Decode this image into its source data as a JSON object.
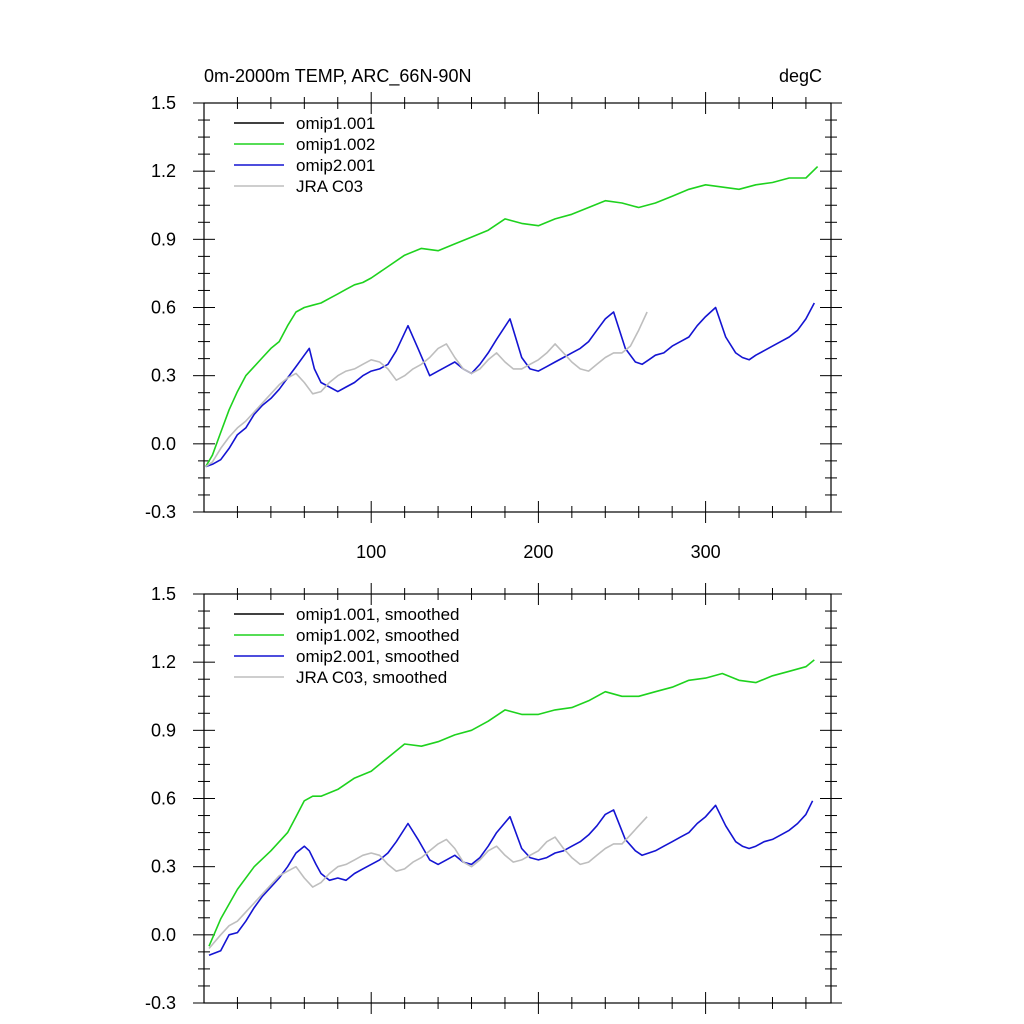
{
  "chart_data": [
    {
      "type": "line",
      "title": "0m-2000m TEMP, ARC_66N-90N",
      "units": "degC",
      "xlim": [
        0,
        375
      ],
      "ylim": [
        -0.3,
        1.5
      ],
      "x_ticks": [
        100,
        200,
        300
      ],
      "y_ticks": [
        "1.5",
        "1.2",
        "0.9",
        "0.6",
        "0.3",
        "0.0",
        "-0.3"
      ],
      "grid": false,
      "legend_position": "top-left",
      "series": [
        {
          "name": "omip1.001",
          "color": "#000000",
          "x": [],
          "y": []
        },
        {
          "name": "omip1.002",
          "color": "#1ed21e",
          "x": [
            1,
            5,
            10,
            15,
            20,
            25,
            30,
            35,
            40,
            45,
            50,
            55,
            60,
            65,
            70,
            75,
            80,
            85,
            90,
            95,
            100,
            110,
            120,
            130,
            140,
            150,
            160,
            170,
            180,
            190,
            200,
            210,
            220,
            230,
            240,
            250,
            260,
            270,
            280,
            290,
            300,
            310,
            320,
            330,
            340,
            350,
            360,
            367
          ],
          "y": [
            -0.1,
            -0.05,
            0.05,
            0.15,
            0.23,
            0.3,
            0.34,
            0.38,
            0.42,
            0.45,
            0.52,
            0.58,
            0.6,
            0.61,
            0.62,
            0.64,
            0.66,
            0.68,
            0.7,
            0.71,
            0.73,
            0.78,
            0.83,
            0.86,
            0.85,
            0.88,
            0.91,
            0.94,
            0.99,
            0.97,
            0.96,
            0.99,
            1.01,
            1.04,
            1.07,
            1.06,
            1.04,
            1.06,
            1.09,
            1.12,
            1.14,
            1.13,
            1.12,
            1.14,
            1.15,
            1.17,
            1.17,
            1.22
          ]
        },
        {
          "name": "omip2.001",
          "color": "#1414d2",
          "x": [
            1,
            5,
            10,
            15,
            20,
            25,
            30,
            35,
            40,
            45,
            50,
            55,
            60,
            63,
            66,
            70,
            75,
            80,
            85,
            90,
            95,
            100,
            105,
            110,
            115,
            122,
            128,
            135,
            140,
            145,
            150,
            155,
            160,
            165,
            170,
            175,
            183,
            190,
            195,
            200,
            205,
            210,
            215,
            220,
            225,
            230,
            235,
            240,
            245,
            252,
            258,
            262,
            266,
            270,
            275,
            280,
            285,
            290,
            295,
            300,
            306,
            312,
            318,
            322,
            326,
            330,
            335,
            340,
            345,
            350,
            355,
            360,
            365
          ],
          "y": [
            -0.1,
            -0.09,
            -0.07,
            -0.02,
            0.04,
            0.07,
            0.13,
            0.17,
            0.2,
            0.24,
            0.29,
            0.34,
            0.39,
            0.42,
            0.33,
            0.27,
            0.25,
            0.23,
            0.25,
            0.27,
            0.3,
            0.32,
            0.33,
            0.35,
            0.41,
            0.52,
            0.42,
            0.3,
            0.32,
            0.34,
            0.36,
            0.33,
            0.31,
            0.35,
            0.4,
            0.46,
            0.55,
            0.38,
            0.33,
            0.32,
            0.34,
            0.36,
            0.38,
            0.4,
            0.42,
            0.45,
            0.5,
            0.55,
            0.58,
            0.42,
            0.36,
            0.35,
            0.37,
            0.39,
            0.4,
            0.43,
            0.45,
            0.47,
            0.52,
            0.56,
            0.6,
            0.47,
            0.4,
            0.38,
            0.37,
            0.39,
            0.41,
            0.43,
            0.45,
            0.47,
            0.5,
            0.55,
            0.62
          ]
        },
        {
          "name": "JRA C03",
          "color": "#bebebe",
          "x": [
            1,
            5,
            10,
            15,
            20,
            25,
            30,
            35,
            40,
            45,
            50,
            55,
            60,
            65,
            70,
            75,
            80,
            85,
            90,
            95,
            100,
            105,
            110,
            115,
            120,
            125,
            130,
            135,
            140,
            145,
            150,
            155,
            160,
            165,
            170,
            175,
            180,
            185,
            190,
            195,
            200,
            205,
            210,
            215,
            220,
            225,
            230,
            235,
            240,
            245,
            250,
            255,
            260,
            265
          ],
          "y": [
            -0.1,
            -0.08,
            -0.02,
            0.03,
            0.07,
            0.1,
            0.14,
            0.18,
            0.22,
            0.26,
            0.29,
            0.31,
            0.27,
            0.22,
            0.23,
            0.27,
            0.3,
            0.32,
            0.33,
            0.35,
            0.37,
            0.36,
            0.33,
            0.28,
            0.3,
            0.33,
            0.35,
            0.38,
            0.42,
            0.44,
            0.38,
            0.33,
            0.31,
            0.33,
            0.37,
            0.4,
            0.36,
            0.33,
            0.33,
            0.35,
            0.37,
            0.4,
            0.44,
            0.4,
            0.36,
            0.33,
            0.32,
            0.35,
            0.38,
            0.4,
            0.4,
            0.43,
            0.5,
            0.58
          ]
        }
      ]
    },
    {
      "type": "line",
      "xlim": [
        0,
        375
      ],
      "ylim": [
        -0.3,
        1.5
      ],
      "y_ticks": [
        "1.5",
        "1.2",
        "0.9",
        "0.6",
        "0.3",
        "0.0",
        "-0.3"
      ],
      "grid": false,
      "legend_position": "top-left",
      "series": [
        {
          "name": "omip1.001, smoothed",
          "color": "#000000",
          "x": [],
          "y": []
        },
        {
          "name": "omip1.002, smoothed",
          "color": "#1ed21e",
          "x": [
            3,
            10,
            20,
            30,
            40,
            50,
            55,
            60,
            65,
            70,
            80,
            90,
            100,
            110,
            120,
            130,
            140,
            150,
            160,
            170,
            180,
            190,
            200,
            210,
            220,
            230,
            240,
            250,
            260,
            270,
            280,
            290,
            300,
            310,
            320,
            330,
            340,
            350,
            360,
            365
          ],
          "y": [
            -0.05,
            0.07,
            0.2,
            0.3,
            0.37,
            0.45,
            0.52,
            0.59,
            0.61,
            0.61,
            0.64,
            0.69,
            0.72,
            0.78,
            0.84,
            0.83,
            0.85,
            0.88,
            0.9,
            0.94,
            0.99,
            0.97,
            0.97,
            0.99,
            1.0,
            1.03,
            1.07,
            1.05,
            1.05,
            1.07,
            1.09,
            1.12,
            1.13,
            1.15,
            1.12,
            1.11,
            1.14,
            1.16,
            1.18,
            1.21
          ]
        },
        {
          "name": "omip2.001, smoothed",
          "color": "#1414d2",
          "x": [
            3,
            10,
            15,
            20,
            25,
            30,
            35,
            40,
            45,
            50,
            55,
            60,
            63,
            67,
            70,
            75,
            80,
            85,
            90,
            95,
            100,
            105,
            110,
            115,
            122,
            128,
            135,
            140,
            145,
            150,
            155,
            160,
            165,
            170,
            175,
            183,
            190,
            195,
            200,
            205,
            210,
            215,
            220,
            225,
            230,
            235,
            240,
            245,
            252,
            258,
            262,
            266,
            270,
            275,
            280,
            285,
            290,
            295,
            300,
            306,
            312,
            318,
            322,
            326,
            330,
            335,
            340,
            345,
            350,
            355,
            360,
            364
          ],
          "y": [
            -0.09,
            -0.07,
            0.0,
            0.01,
            0.06,
            0.12,
            0.17,
            0.21,
            0.25,
            0.3,
            0.36,
            0.39,
            0.37,
            0.31,
            0.27,
            0.24,
            0.25,
            0.24,
            0.27,
            0.29,
            0.31,
            0.33,
            0.36,
            0.41,
            0.49,
            0.42,
            0.33,
            0.31,
            0.33,
            0.35,
            0.32,
            0.31,
            0.34,
            0.39,
            0.45,
            0.52,
            0.38,
            0.34,
            0.33,
            0.34,
            0.36,
            0.37,
            0.39,
            0.41,
            0.44,
            0.48,
            0.53,
            0.55,
            0.42,
            0.37,
            0.35,
            0.36,
            0.37,
            0.39,
            0.41,
            0.43,
            0.45,
            0.49,
            0.52,
            0.57,
            0.48,
            0.41,
            0.39,
            0.38,
            0.39,
            0.41,
            0.42,
            0.44,
            0.46,
            0.49,
            0.53,
            0.59
          ]
        },
        {
          "name": "JRA C03, smoothed",
          "color": "#bebebe",
          "x": [
            3,
            10,
            15,
            20,
            25,
            30,
            35,
            40,
            45,
            50,
            55,
            60,
            65,
            70,
            75,
            80,
            85,
            90,
            95,
            100,
            105,
            110,
            115,
            120,
            125,
            130,
            135,
            140,
            145,
            150,
            155,
            160,
            165,
            170,
            175,
            180,
            185,
            190,
            195,
            200,
            205,
            210,
            215,
            220,
            225,
            230,
            235,
            240,
            245,
            250,
            255,
            260,
            265
          ],
          "y": [
            -0.06,
            0.0,
            0.04,
            0.06,
            0.1,
            0.14,
            0.18,
            0.22,
            0.26,
            0.28,
            0.3,
            0.25,
            0.21,
            0.23,
            0.27,
            0.3,
            0.31,
            0.33,
            0.35,
            0.36,
            0.35,
            0.31,
            0.28,
            0.29,
            0.32,
            0.34,
            0.37,
            0.4,
            0.42,
            0.38,
            0.32,
            0.3,
            0.33,
            0.37,
            0.39,
            0.35,
            0.32,
            0.33,
            0.35,
            0.37,
            0.41,
            0.43,
            0.38,
            0.34,
            0.31,
            0.32,
            0.35,
            0.38,
            0.4,
            0.4,
            0.44,
            0.48,
            0.52
          ]
        }
      ]
    }
  ]
}
